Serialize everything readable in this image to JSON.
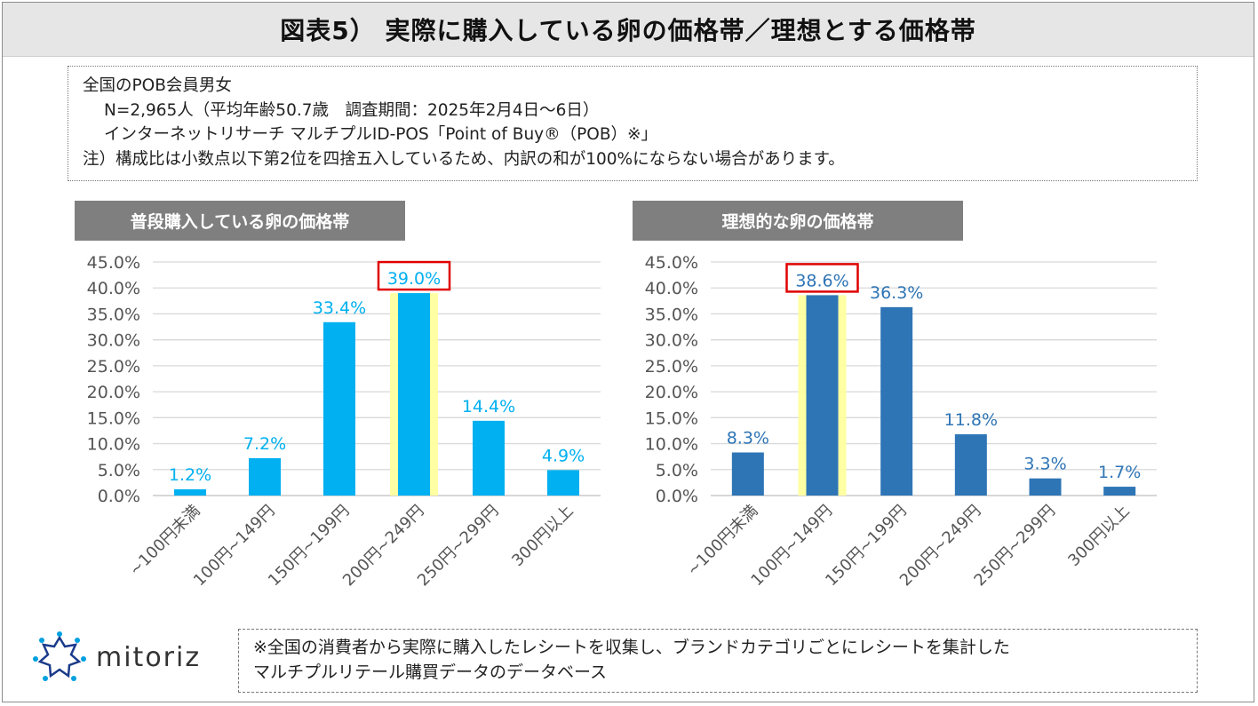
{
  "title": "図表5） 実際に購入している卵の価格帯／理想とする価格帯",
  "info": {
    "line1": "全国のPOB会員男女",
    "line2": "N=2,965人（平均年齢50.7歳　調査期間：2025年2月4日〜6日）",
    "line3": "インターネットリサーチ マルチプルID-POS「Point of Buy®（POB）※」",
    "line4": "注）構成比は小数点以下第2位を四捨五入しているため、内訳の和が100%にならない場合があります。"
  },
  "footnote": {
    "line1": "※全国の消費者から実際に購入したレシートを収集し、ブランドカテゴリごとにレシートを集計した",
    "line2": "マルチプルリテール購買データのデータベース"
  },
  "logo": {
    "text": "mitoriz"
  },
  "colors": {
    "left_bar": "#00b0f0",
    "right_bar": "#2e75b6",
    "highlight_glow": "#ffff99",
    "highlight_border": "#e00000",
    "grid": "#d9d9d9"
  },
  "chart_data": [
    {
      "type": "bar",
      "title": "普段購入している卵の価格帯",
      "categories": [
        "~100円未満",
        "100円~149円",
        "150円~199円",
        "200円~249円",
        "250円~299円",
        "300円以上"
      ],
      "values": [
        1.2,
        7.2,
        33.4,
        39.0,
        14.4,
        4.9
      ],
      "labels": [
        "1.2%",
        "7.2%",
        "33.4%",
        "39.0%",
        "14.4%",
        "4.9%"
      ],
      "yticks": [
        "0.0%",
        "5.0%",
        "10.0%",
        "15.0%",
        "20.0%",
        "25.0%",
        "30.0%",
        "35.0%",
        "40.0%",
        "45.0%"
      ],
      "ylim": [
        0,
        45
      ],
      "highlight_index": 3,
      "xlabel": "",
      "ylabel": ""
    },
    {
      "type": "bar",
      "title": "理想的な卵の価格帯",
      "categories": [
        "~100円未満",
        "100円~149円",
        "150円~199円",
        "200円~249円",
        "250円~299円",
        "300円以上"
      ],
      "values": [
        8.3,
        38.6,
        36.3,
        11.8,
        3.3,
        1.7
      ],
      "labels": [
        "8.3%",
        "38.6%",
        "36.3%",
        "11.8%",
        "3.3%",
        "1.7%"
      ],
      "yticks": [
        "0.0%",
        "5.0%",
        "10.0%",
        "15.0%",
        "20.0%",
        "25.0%",
        "30.0%",
        "35.0%",
        "40.0%",
        "45.0%"
      ],
      "ylim": [
        0,
        45
      ],
      "highlight_index": 1,
      "xlabel": "",
      "ylabel": ""
    }
  ]
}
